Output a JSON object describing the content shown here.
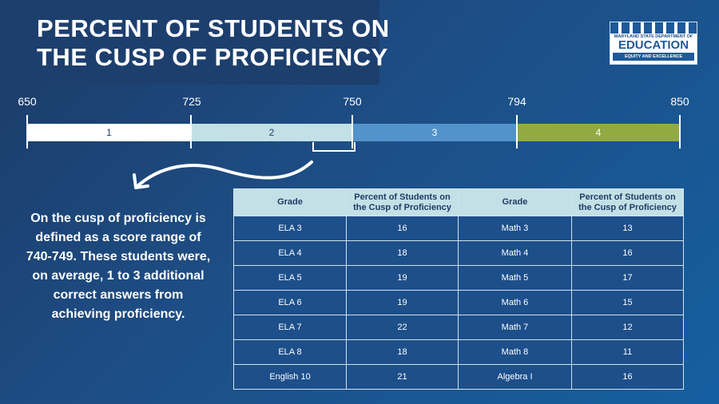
{
  "title": {
    "line1": "PERCENT OF STUDENTS ON",
    "line2": "THE CUSP OF PROFICIENCY"
  },
  "logo": {
    "line1": "MARYLAND STATE DEPARTMENT OF",
    "line2": "EDUCATION",
    "line3": "EQUITY AND EXCELLENCE"
  },
  "scale": {
    "ticks": [
      "650",
      "725",
      "750",
      "794",
      "850"
    ],
    "levels": [
      {
        "label": "1",
        "color": "#ffffff"
      },
      {
        "label": "2",
        "color": "#c3e0e6"
      },
      {
        "label": "3",
        "color": "#5393cc"
      },
      {
        "label": "4",
        "color": "#93aa42"
      }
    ]
  },
  "description": "On the cusp of proficiency is defined as a score range of 740-749. These students were, on average, 1 to 3 additional correct answers from achieving proficiency.",
  "table": {
    "headers": [
      "Grade",
      "Percent of Students on the Cusp of Proficiency",
      "Grade",
      "Percent of Students on the Cusp of Proficiency"
    ],
    "rows": [
      [
        "ELA 3",
        "16",
        "Math 3",
        "13"
      ],
      [
        "ELA 4",
        "18",
        "Math 4",
        "16"
      ],
      [
        "ELA 5",
        "19",
        "Math 5",
        "17"
      ],
      [
        "ELA 6",
        "19",
        "Math 6",
        "15"
      ],
      [
        "ELA 7",
        "22",
        "Math 7",
        "12"
      ],
      [
        "ELA 8",
        "18",
        "Math 8",
        "11"
      ],
      [
        "English 10",
        "21",
        "Algebra I",
        "16"
      ]
    ]
  }
}
